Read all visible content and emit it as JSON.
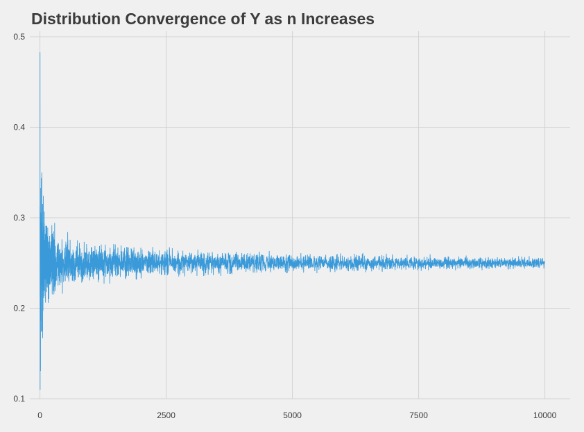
{
  "chart_data": {
    "type": "line",
    "title": "Distribution Convergence of Y as n Increases",
    "xlabel": "",
    "ylabel": "",
    "xlim": [
      -200,
      10500
    ],
    "ylim": [
      0.1,
      0.5
    ],
    "x_ticks": [
      0,
      2500,
      5000,
      7500,
      10000
    ],
    "x_tick_labels": [
      "0",
      "2500",
      "5000",
      "7500",
      "10000"
    ],
    "y_ticks": [
      0.1,
      0.2,
      0.3,
      0.4,
      0.5
    ],
    "y_tick_labels": [
      "0.1",
      "0.2",
      "0.3",
      "0.4",
      "0.5"
    ],
    "grid": true,
    "legend": "none",
    "series": [
      {
        "color": "#3a9ad9",
        "converges_to": 0.25,
        "n_range": [
          1,
          10000
        ],
        "envelope": [
          {
            "n": 1,
            "min": 0.11,
            "max": 0.483
          },
          {
            "n": 20,
            "min": 0.13,
            "max": 0.47
          },
          {
            "n": 50,
            "min": 0.16,
            "max": 0.343
          },
          {
            "n": 100,
            "min": 0.19,
            "max": 0.31
          },
          {
            "n": 200,
            "min": 0.205,
            "max": 0.3
          },
          {
            "n": 500,
            "min": 0.215,
            "max": 0.287
          },
          {
            "n": 1000,
            "min": 0.225,
            "max": 0.275
          },
          {
            "n": 1500,
            "min": 0.227,
            "max": 0.273
          },
          {
            "n": 2500,
            "min": 0.232,
            "max": 0.268
          },
          {
            "n": 3500,
            "min": 0.235,
            "max": 0.266
          },
          {
            "n": 5000,
            "min": 0.237,
            "max": 0.263
          },
          {
            "n": 7500,
            "min": 0.24,
            "max": 0.26
          },
          {
            "n": 10000,
            "min": 0.243,
            "max": 0.257
          }
        ]
      }
    ]
  }
}
